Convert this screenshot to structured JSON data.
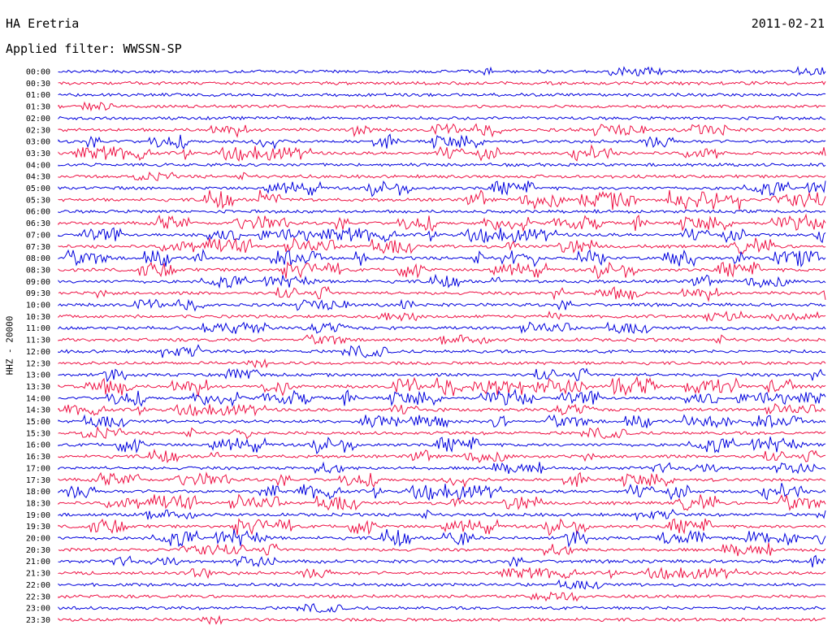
{
  "header": {
    "station": "HA Eretria",
    "date": "2011-02-21",
    "filter_prefix": "Applied filter:",
    "filter_name": "WWSSN-SP"
  },
  "colors": {
    "even_trace": "#0000dd",
    "odd_trace": "#ee1144",
    "background": "#ffffff",
    "text": "#000000"
  },
  "chart_data": {
    "type": "line",
    "title": "HA Eretria",
    "subtitle": "Applied filter: WWSSN-SP",
    "ylabel": "HHZ - 20000",
    "xlabel": "",
    "grid": false,
    "legend": "none",
    "row_labels": [
      "00:00",
      "00:30",
      "01:00",
      "01:30",
      "02:00",
      "02:30",
      "03:00",
      "03:30",
      "04:00",
      "04:30",
      "05:00",
      "05:30",
      "06:00",
      "06:30",
      "07:00",
      "07:30",
      "08:00",
      "08:30",
      "09:00",
      "09:30",
      "10:00",
      "10:30",
      "11:00",
      "11:30",
      "12:00",
      "12:30",
      "13:00",
      "13:30",
      "14:00",
      "14:30",
      "15:00",
      "15:30",
      "16:00",
      "16:30",
      "17:00",
      "17:30",
      "18:00",
      "18:30",
      "19:00",
      "19:30",
      "20:00",
      "20:30",
      "21:00",
      "21:30",
      "22:00",
      "22:30",
      "23:00",
      "23:30"
    ],
    "activity_level": [
      0.1,
      0.05,
      0.05,
      0.05,
      0.1,
      0.4,
      0.5,
      0.6,
      0.02,
      0.02,
      0.6,
      0.9,
      0.1,
      0.6,
      0.6,
      0.7,
      0.7,
      0.7,
      0.4,
      0.5,
      0.3,
      0.1,
      0.3,
      0.2,
      0.4,
      0.1,
      0.5,
      0.9,
      0.6,
      0.3,
      0.4,
      0.3,
      0.7,
      0.4,
      0.3,
      0.5,
      0.7,
      0.7,
      0.2,
      0.7,
      0.8,
      0.4,
      0.3,
      0.3,
      0.1,
      0.1,
      0.1,
      0.1
    ]
  }
}
